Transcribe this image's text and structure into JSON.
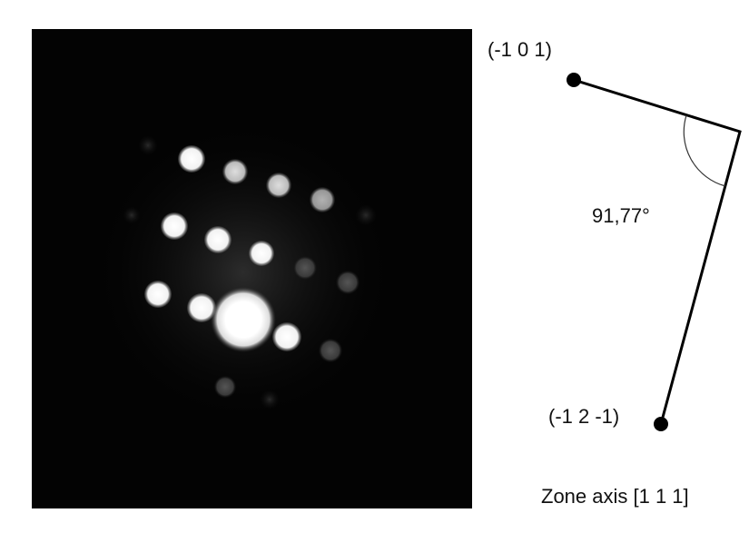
{
  "figure": {
    "labels": {
      "plane_a": "(-1 0 1)",
      "angle": "91,77°",
      "plane_b": "(-1 2 -1)",
      "zone_axis": "Zone axis [1 1 1]"
    }
  }
}
